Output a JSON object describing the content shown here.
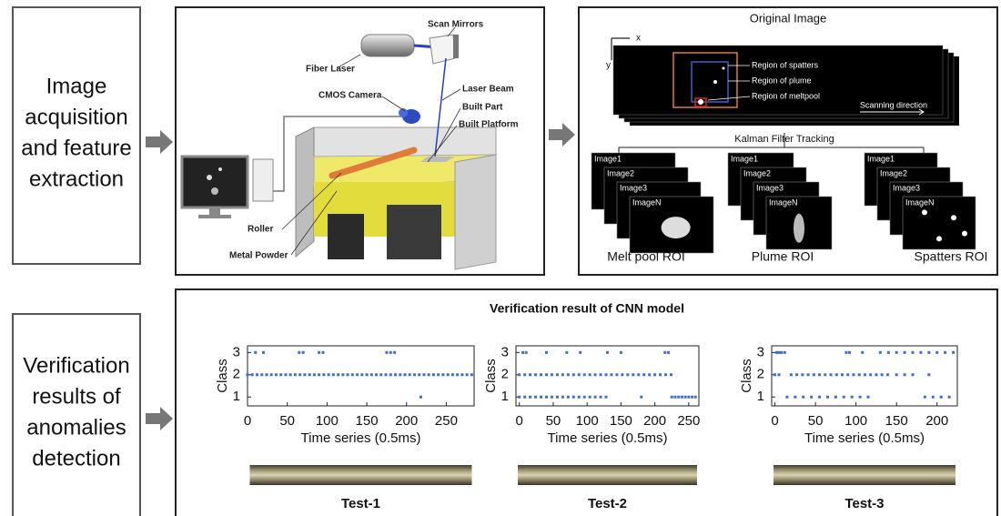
{
  "left_labels": [
    {
      "lines": [
        "Image",
        "acquisition",
        "and feature",
        "extraction"
      ]
    },
    {
      "lines": [
        "Verification",
        "results of",
        "anomalies",
        "detection"
      ]
    }
  ],
  "acquisition": {
    "labels": [
      "Scan Mirrors",
      "Fiber Laser",
      "CMOS Camera",
      "Laser Beam",
      "Built Part",
      "Built Platform",
      "Roller",
      "Metal Powder"
    ]
  },
  "feature_extraction": {
    "title": "Original Image",
    "axis_x": "x",
    "axis_y": "y",
    "regions": [
      "Region of spatters",
      "Region of plume",
      "Region of meltpool"
    ],
    "scan_direction": "Scanning direction",
    "tracking": "Kalman Filter Tracking",
    "rois": [
      {
        "frames": [
          "Image1",
          "Image2",
          "Image3",
          "ImageN"
        ],
        "caption": "Melt pool ROI"
      },
      {
        "frames": [
          "Image1",
          "Image2",
          "Image3",
          "ImageN"
        ],
        "caption": "Plume ROI"
      },
      {
        "frames": [
          "Image1",
          "Image2",
          "Image3",
          "ImageN"
        ],
        "caption": "Spatters ROI"
      }
    ]
  },
  "verification": {
    "title": "Verification result of CNN model",
    "charts": [
      {
        "type": "scatter",
        "xlabel": "Time series (0.5ms)",
        "ylabel": "Class",
        "caption": "Test-1",
        "color": "#3f6fc6",
        "xlim": [
          0,
          285
        ],
        "ylim": [
          0.6,
          3.3
        ],
        "xticks": [
          0,
          50,
          100,
          150,
          200,
          250
        ],
        "yticks": [
          1,
          2,
          3
        ],
        "x": [
          10,
          20,
          65,
          70,
          90,
          95,
          175,
          180,
          185,
          218,
          0,
          6,
          12,
          18,
          24,
          30,
          36,
          42,
          48,
          54,
          60,
          66,
          72,
          78,
          84,
          90,
          96,
          102,
          108,
          114,
          120,
          126,
          132,
          138,
          144,
          150,
          156,
          162,
          168,
          174,
          180,
          186,
          192,
          198,
          204,
          210,
          216,
          222,
          228,
          234,
          240,
          246,
          252,
          258,
          264,
          270,
          276,
          282
        ],
        "y": [
          3,
          3,
          3,
          3,
          3,
          3,
          3,
          3,
          3,
          1,
          2,
          2,
          2,
          2,
          2,
          2,
          2,
          2,
          2,
          2,
          2,
          2,
          2,
          2,
          2,
          2,
          2,
          2,
          2,
          2,
          2,
          2,
          2,
          2,
          2,
          2,
          2,
          2,
          2,
          2,
          2,
          2,
          2,
          2,
          2,
          2,
          2,
          2,
          2,
          2,
          2,
          2,
          2,
          2,
          2,
          2,
          2,
          2
        ]
      },
      {
        "type": "scatter",
        "xlabel": "Time series (0.5ms)",
        "ylabel": "Class",
        "caption": "Test-2",
        "color": "#3f6fc6",
        "xlim": [
          -5,
          265
        ],
        "ylim": [
          0.6,
          3.3
        ],
        "xticks": [
          0,
          50,
          100,
          150,
          200,
          250
        ],
        "yticks": [
          1,
          2,
          3
        ],
        "x": [
          5,
          10,
          40,
          70,
          90,
          130,
          150,
          215,
          220,
          0,
          8,
          16,
          24,
          32,
          40,
          48,
          56,
          64,
          72,
          80,
          88,
          96,
          104,
          112,
          120,
          128,
          136,
          144,
          152,
          160,
          168,
          176,
          184,
          192,
          200,
          208,
          216,
          224,
          0,
          8,
          16,
          24,
          32,
          40,
          48,
          56,
          64,
          72,
          80,
          88,
          96,
          104,
          112,
          120,
          128,
          180,
          225,
          230,
          235,
          240,
          245,
          250,
          255,
          260
        ],
        "y": [
          3,
          3,
          3,
          3,
          3,
          3,
          3,
          3,
          3,
          2,
          2,
          2,
          2,
          2,
          2,
          2,
          2,
          2,
          2,
          2,
          2,
          2,
          2,
          2,
          2,
          2,
          2,
          2,
          2,
          2,
          2,
          2,
          2,
          2,
          2,
          2,
          2,
          2,
          1,
          1,
          1,
          1,
          1,
          1,
          1,
          1,
          1,
          1,
          1,
          1,
          1,
          1,
          1,
          1,
          1,
          1,
          1,
          1,
          1,
          1,
          1,
          1,
          1,
          1
        ]
      },
      {
        "type": "scatter",
        "xlabel": "Time series (0.5ms)",
        "ylabel": "Class",
        "caption": "Test-3",
        "color": "#3f6fc6",
        "xlim": [
          -4,
          225
        ],
        "ylim": [
          0.6,
          3.3
        ],
        "xticks": [
          0,
          50,
          100,
          150,
          200
        ],
        "yticks": [
          1,
          2,
          3
        ],
        "x": [
          2,
          5,
          8,
          12,
          88,
          92,
          108,
          130,
          140,
          150,
          160,
          170,
          180,
          190,
          200,
          210,
          220,
          0,
          5,
          20,
          27,
          34,
          41,
          48,
          55,
          62,
          69,
          76,
          83,
          90,
          97,
          104,
          111,
          118,
          125,
          132,
          139,
          150,
          160,
          170,
          190,
          15,
          25,
          35,
          45,
          55,
          65,
          75,
          85,
          95,
          105,
          115,
          185,
          195,
          205,
          215
        ],
        "y": [
          3,
          3,
          3,
          3,
          3,
          3,
          3,
          3,
          3,
          3,
          3,
          3,
          3,
          3,
          3,
          3,
          3,
          2,
          2,
          2,
          2,
          2,
          2,
          2,
          2,
          2,
          2,
          2,
          2,
          2,
          2,
          2,
          2,
          2,
          2,
          2,
          2,
          2,
          2,
          2,
          2,
          1,
          1,
          1,
          1,
          1,
          1,
          1,
          1,
          1,
          1,
          1,
          1,
          1,
          1,
          1
        ]
      }
    ]
  }
}
